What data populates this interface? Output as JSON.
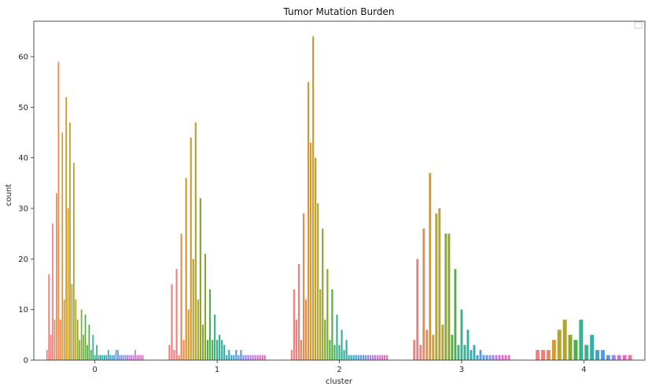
{
  "chart_data": {
    "type": "bar",
    "title": "Tumor Mutation Burden",
    "xlabel": "cluster",
    "ylabel": "count",
    "categories": [
      "0",
      "1",
      "2",
      "3",
      "4"
    ],
    "ylim": [
      0,
      67
    ],
    "yticks": [
      0,
      10,
      20,
      30,
      40,
      50,
      60
    ],
    "legend": {
      "placement": "top-right",
      "entries": []
    },
    "grid": false,
    "palette": [
      "#f27e7e",
      "#ea8a52",
      "#d39a2c",
      "#b3a32f",
      "#86aa2f",
      "#4fb04a",
      "#3ab08d",
      "#35ada8",
      "#39a7c4",
      "#5a9ae3",
      "#9b87e6",
      "#c878dd",
      "#e06ec3",
      "#e677a2"
    ],
    "series_by_category": [
      [
        2,
        17,
        5,
        27,
        8,
        33,
        59,
        8,
        45,
        12,
        52,
        30,
        47,
        15,
        39,
        12,
        8,
        4,
        10,
        5,
        9,
        3,
        7,
        2,
        5,
        1,
        3,
        1,
        1,
        1,
        1,
        1,
        2,
        1,
        1,
        1,
        2,
        2,
        1,
        1,
        1,
        1,
        1,
        1,
        1,
        1,
        2,
        1,
        1,
        1,
        1
      ],
      [
        3,
        15,
        2,
        18,
        1,
        25,
        4,
        36,
        10,
        44,
        20,
        47,
        12,
        32,
        7,
        21,
        4,
        14,
        4,
        9,
        4,
        5,
        4,
        3,
        1,
        2,
        1,
        1,
        2,
        1,
        2,
        1,
        1,
        1,
        1,
        1,
        1,
        1,
        1,
        1,
        1
      ],
      [
        2,
        14,
        8,
        19,
        4,
        29,
        12,
        55,
        43,
        64,
        40,
        31,
        14,
        26,
        8,
        18,
        4,
        14,
        3,
        9,
        3,
        6,
        2,
        4,
        1,
        1,
        1,
        1,
        1,
        1,
        1,
        1,
        1,
        1,
        1,
        1,
        1,
        1,
        1,
        1,
        1
      ],
      [
        4,
        20,
        3,
        26,
        6,
        37,
        5,
        29,
        30,
        7,
        25,
        25,
        5,
        18,
        3,
        10,
        3,
        6,
        2,
        3,
        1,
        2,
        1,
        1,
        1,
        1,
        1,
        1,
        1,
        1,
        1
      ],
      [
        2,
        2,
        2,
        4,
        6,
        8,
        5,
        4,
        8,
        3,
        5,
        2,
        2,
        1,
        1,
        1,
        1,
        1
      ]
    ],
    "bar_counts_per_category": [
      51,
      41,
      41,
      31,
      18
    ]
  }
}
